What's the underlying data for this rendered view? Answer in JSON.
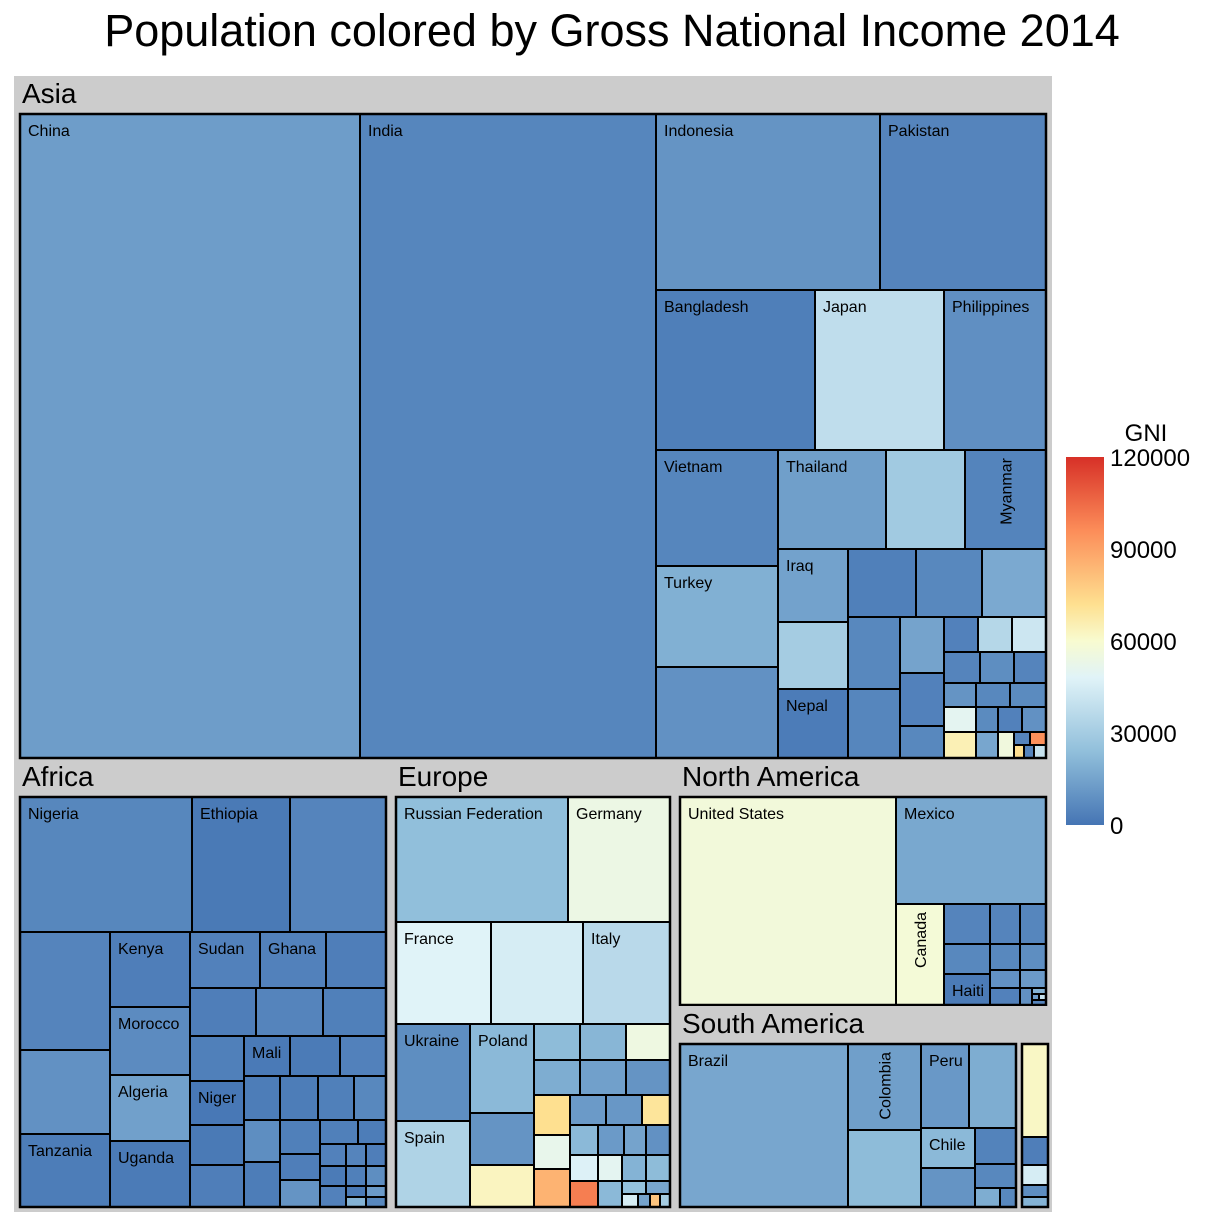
{
  "chart_data": {
    "type": "treemap",
    "title": "Population colored by Gross National Income 2014",
    "size_variable": "Population",
    "color_variable": "GNI",
    "color_scale": {
      "domain": [
        0,
        120000
      ],
      "ticks": [
        "120000",
        "90000",
        "60000",
        "30000",
        "0"
      ],
      "stops": [
        {
          "value": 0,
          "color": "#4575b4"
        },
        {
          "value": 24000,
          "color": "#91bfdb"
        },
        {
          "value": 48000,
          "color": "#e0f3f8"
        },
        {
          "value": 60000,
          "color": "#f8fbd0"
        },
        {
          "value": 72000,
          "color": "#fee090"
        },
        {
          "value": 96000,
          "color": "#fc8d59"
        },
        {
          "value": 120000,
          "color": "#d73027"
        }
      ]
    },
    "legend": {
      "title": "GNI",
      "placement": "right"
    },
    "background_color": "#cccccc",
    "groups": [
      {
        "name": "Asia",
        "labeled": [
          "China",
          "India",
          "Indonesia",
          "Pakistan",
          "Bangladesh",
          "Japan",
          "Philippines",
          "Vietnam",
          "Thailand",
          "Myanmar",
          "Turkey",
          "Iraq",
          "Nepal"
        ]
      },
      {
        "name": "Africa",
        "labeled": [
          "Nigeria",
          "Ethiopia",
          "Kenya",
          "Sudan",
          "Ghana",
          "Morocco",
          "Mali",
          "Algeria",
          "Niger",
          "Tanzania",
          "Uganda"
        ]
      },
      {
        "name": "Europe",
        "labeled": [
          "Russian Federation",
          "Germany",
          "France",
          "Italy",
          "Ukraine",
          "Poland",
          "Spain"
        ]
      },
      {
        "name": "North America",
        "labeled": [
          "United States",
          "Mexico",
          "Canada",
          "Haiti"
        ]
      },
      {
        "name": "South America",
        "labeled": [
          "Brazil",
          "Colombia",
          "Peru",
          "Chile"
        ]
      },
      {
        "name": "",
        "labeled": []
      }
    ]
  }
}
